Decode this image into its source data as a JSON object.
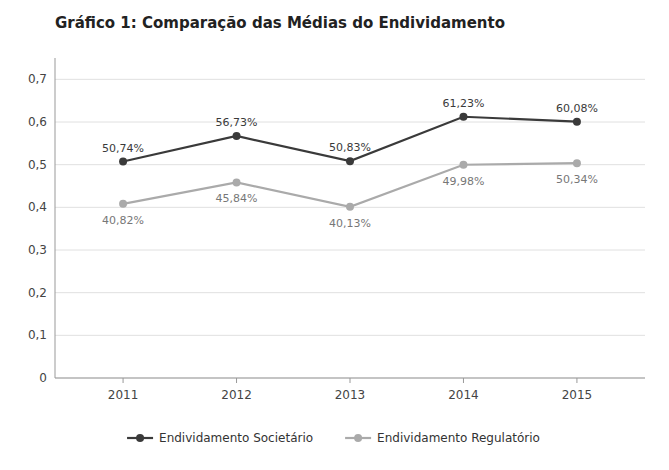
{
  "chart_data": {
    "type": "line",
    "title": "Gráfico 1: Comparação das Médias do Endividamento",
    "x": [
      2011,
      2012,
      2013,
      2014,
      2015
    ],
    "xlim": [
      2010.4,
      2015.6
    ],
    "xticks": [
      2011,
      2012,
      2013,
      2014,
      2015
    ],
    "series": [
      {
        "name": "Endividamento Societário",
        "color": "#3a3a3a",
        "values": [
          0.5074,
          0.5673,
          0.5083,
          0.6123,
          0.6008
        ],
        "value_labels": [
          "50,74%",
          "56,73%",
          "50,83%",
          "61,23%",
          "60,08%"
        ]
      },
      {
        "name": "Endividamento Regulatório",
        "color": "#aaaaaa",
        "values": [
          0.4082,
          0.4584,
          0.4013,
          0.4998,
          0.5034
        ],
        "value_labels": [
          "40,82%",
          "45,84%",
          "40,13%",
          "49,98%",
          "50,34%"
        ]
      }
    ],
    "ylim": [
      0,
      0.75
    ],
    "yticks": [
      0,
      {
        "value": 0.1,
        "label": "0,1"
      },
      {
        "value": 0.2,
        "label": "0,2"
      },
      {
        "value": 0.3,
        "label": "0,3"
      },
      {
        "value": 0.4,
        "label": "0,4"
      },
      {
        "value": 0.5,
        "label": "0,5"
      },
      {
        "value": 0.6,
        "label": "0,6"
      },
      {
        "value": 0.7,
        "label": "0,7"
      }
    ],
    "grid": true,
    "legend": "bottom",
    "data_labels": true,
    "marker": "circle"
  }
}
